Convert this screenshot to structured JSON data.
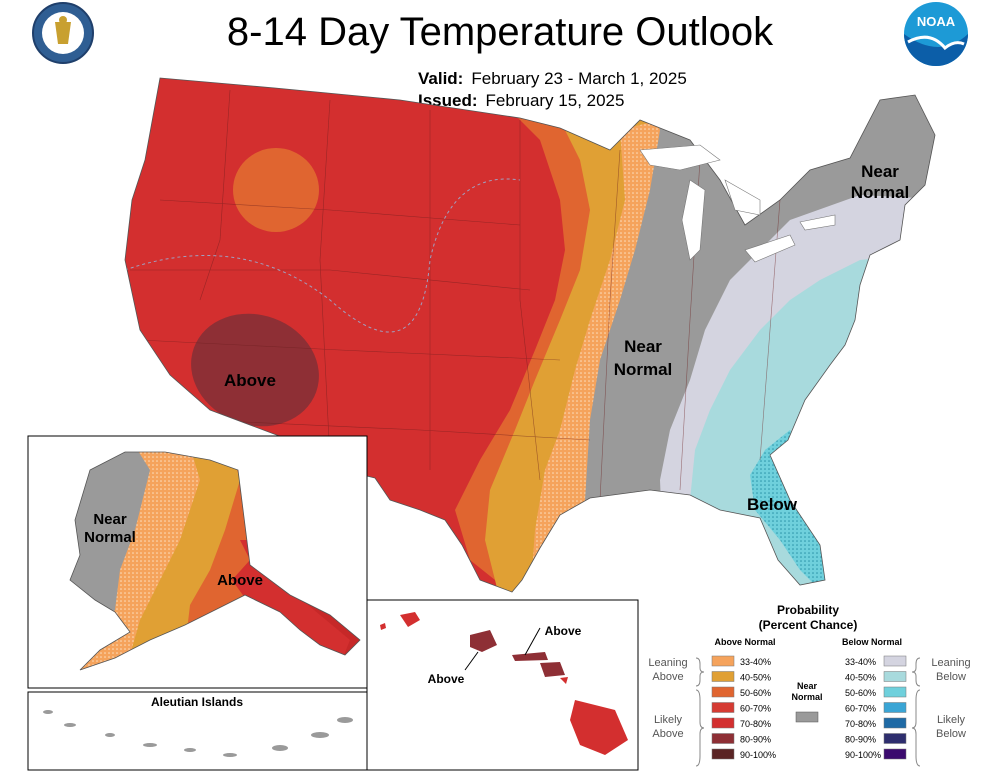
{
  "title": "8-14 Day Temperature Outlook",
  "valid": {
    "label": "Valid:",
    "value": "February 23 - March 1, 2025"
  },
  "issued": {
    "label": "Issued:",
    "value": "February 15, 2025"
  },
  "logos": {
    "doc": "department-of-commerce-seal",
    "noaa_text": "NOAA"
  },
  "map_labels": {
    "conus_above": "Above",
    "conus_near_line1": "Near",
    "conus_near_line2": "Normal",
    "ne_near_line1": "Near",
    "ne_near_line2": "Normal",
    "conus_below": "Below",
    "ak_near_line1": "Near",
    "ak_near_line2": "Normal",
    "ak_above": "Above",
    "aleutian": "Aleutian Islands",
    "hi_above_1": "Above",
    "hi_above_2": "Above"
  },
  "legend": {
    "title_line1": "Probability",
    "title_line2": "(Percent Chance)",
    "above_header": "Above Normal",
    "below_header": "Below Normal",
    "near_line1": "Near",
    "near_line2": "Normal",
    "leaning_above_1": "Leaning",
    "leaning_above_2": "Above",
    "likely_above_1": "Likely",
    "likely_above_2": "Above",
    "leaning_below_1": "Leaning",
    "leaning_below_2": "Below",
    "likely_below_1": "Likely",
    "likely_below_2": "Below",
    "above_items": [
      {
        "label": "33-40%",
        "color": "#f5a35c"
      },
      {
        "label": "40-50%",
        "color": "#e0a034"
      },
      {
        "label": "50-60%",
        "color": "#e06530"
      },
      {
        "label": "60-70%",
        "color": "#d53b33"
      },
      {
        "label": "70-80%",
        "color": "#d32f2f"
      },
      {
        "label": "80-90%",
        "color": "#8e2f35"
      },
      {
        "label": "90-100%",
        "color": "#5a2424"
      }
    ],
    "below_items": [
      {
        "label": "33-40%",
        "color": "#d4d4e0"
      },
      {
        "label": "40-50%",
        "color": "#a8dadd"
      },
      {
        "label": "50-60%",
        "color": "#6fd0dc"
      },
      {
        "label": "60-70%",
        "color": "#3aa5d5"
      },
      {
        "label": "70-80%",
        "color": "#1f6aa5"
      },
      {
        "label": "80-90%",
        "color": "#2e2e6e"
      },
      {
        "label": "90-100%",
        "color": "#3b0a6e"
      }
    ],
    "near_color": "#9a9a9a"
  }
}
